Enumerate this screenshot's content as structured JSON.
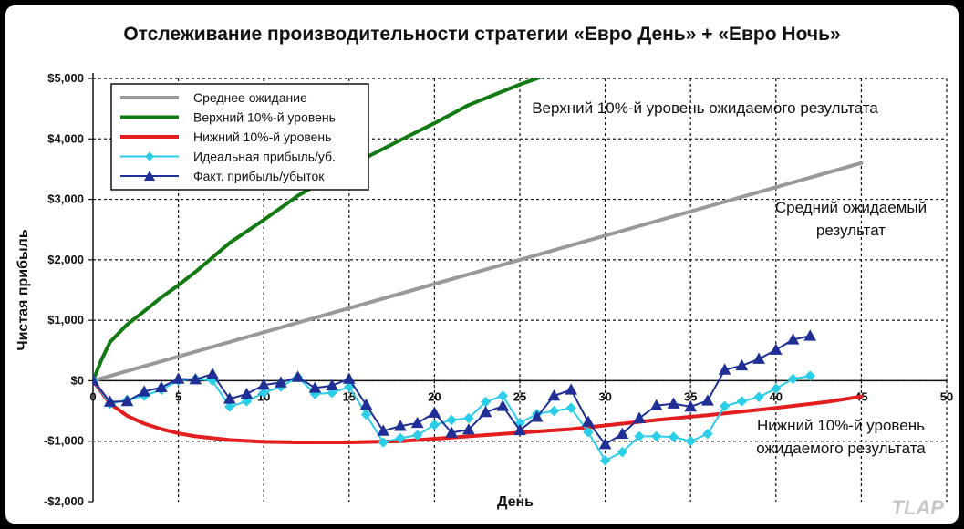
{
  "title": "Отслеживание производительности стратегии «Евро День» + «Евро Ночь»",
  "watermark": "TLAP",
  "chart_data": {
    "type": "line",
    "xlabel": "День",
    "ylabel": "Чистая прибыль",
    "xlim": [
      0,
      50
    ],
    "ylim": [
      -2000,
      5000
    ],
    "x_ticks": [
      0,
      5,
      10,
      15,
      20,
      25,
      30,
      35,
      40,
      45,
      50
    ],
    "y_ticks": [
      5000,
      4000,
      3000,
      2000,
      1000,
      0,
      -1000,
      -2000
    ],
    "y_tick_labels": [
      "$5,000",
      "$4,000",
      "$3,000",
      "$2,000",
      "$1,000",
      "$0",
      "-$1,000",
      "-$2,000"
    ],
    "grid": true,
    "legend_position": "top-left",
    "series": [
      {
        "name": "Среднее ожидание",
        "color": "#999999",
        "marker": "none",
        "x": [
          0,
          45
        ],
        "y": [
          0,
          3600
        ]
      },
      {
        "name": "Верхний 10%-й уровень",
        "color": "#127a12",
        "marker": "none",
        "x": [
          0,
          0.5,
          1,
          2,
          3,
          4,
          5,
          6,
          8,
          10,
          12,
          15,
          18,
          20,
          22,
          25,
          27
        ],
        "y": [
          0,
          350,
          640,
          930,
          1150,
          1380,
          1580,
          1800,
          2280,
          2660,
          3060,
          3550,
          3980,
          4260,
          4560,
          4900,
          5100
        ]
      },
      {
        "name": "Нижний 10%-й уровень",
        "color": "#e31e1e",
        "marker": "none",
        "x": [
          0,
          1,
          2,
          3,
          4,
          5,
          6,
          8,
          10,
          12,
          15,
          18,
          20,
          22,
          25,
          28,
          30,
          33,
          36,
          40,
          43,
          45
        ],
        "y": [
          0,
          -380,
          -580,
          -710,
          -800,
          -870,
          -920,
          -980,
          -1010,
          -1020,
          -1020,
          -1000,
          -960,
          -920,
          -860,
          -800,
          -740,
          -650,
          -570,
          -450,
          -350,
          -260
        ]
      },
      {
        "name": "Идеальная прибыль/уб.",
        "color": "#2ccde8",
        "marker": "diamond",
        "x": [
          0,
          1,
          2,
          3,
          4,
          5,
          6,
          7,
          8,
          9,
          10,
          11,
          12,
          13,
          14,
          15,
          16,
          17,
          18,
          19,
          20,
          21,
          22,
          23,
          24,
          25,
          26,
          27,
          28,
          29,
          30,
          31,
          32,
          33,
          34,
          35,
          36,
          37,
          38,
          39,
          40,
          41,
          42
        ],
        "y": [
          0,
          -380,
          -320,
          -250,
          -150,
          0,
          30,
          0,
          -430,
          -340,
          -200,
          -100,
          60,
          -220,
          -200,
          -100,
          -560,
          -1020,
          -950,
          -900,
          -730,
          -650,
          -620,
          -350,
          -250,
          -700,
          -550,
          -500,
          -450,
          -850,
          -1320,
          -1180,
          -920,
          -920,
          -930,
          -1000,
          -880,
          -420,
          -340,
          -270,
          -130,
          30,
          80
        ]
      },
      {
        "name": "Факт. прибыль/убыток",
        "color": "#1f2f95",
        "marker": "triangle",
        "x": [
          0,
          1,
          2,
          3,
          4,
          5,
          6,
          7,
          8,
          9,
          10,
          11,
          12,
          13,
          14,
          15,
          16,
          17,
          18,
          19,
          20,
          21,
          22,
          23,
          24,
          25,
          26,
          27,
          28,
          29,
          30,
          31,
          32,
          33,
          34,
          35,
          36,
          37,
          38,
          39,
          40,
          41,
          42
        ],
        "y": [
          0,
          -350,
          -340,
          -180,
          -110,
          30,
          20,
          110,
          -300,
          -220,
          -70,
          -30,
          60,
          -120,
          -80,
          30,
          -400,
          -830,
          -750,
          -700,
          -530,
          -860,
          -810,
          -520,
          -420,
          -820,
          -600,
          -250,
          -150,
          -680,
          -1050,
          -880,
          -620,
          -410,
          -380,
          -430,
          -330,
          180,
          250,
          360,
          510,
          680,
          740
        ]
      }
    ],
    "annotations": [
      "Верхний 10%-й уровень ожидаемого результата",
      "Средний ожидаемый",
      "результат",
      "Нижний 10%-й уровень",
      "ожидаемого результата"
    ]
  }
}
